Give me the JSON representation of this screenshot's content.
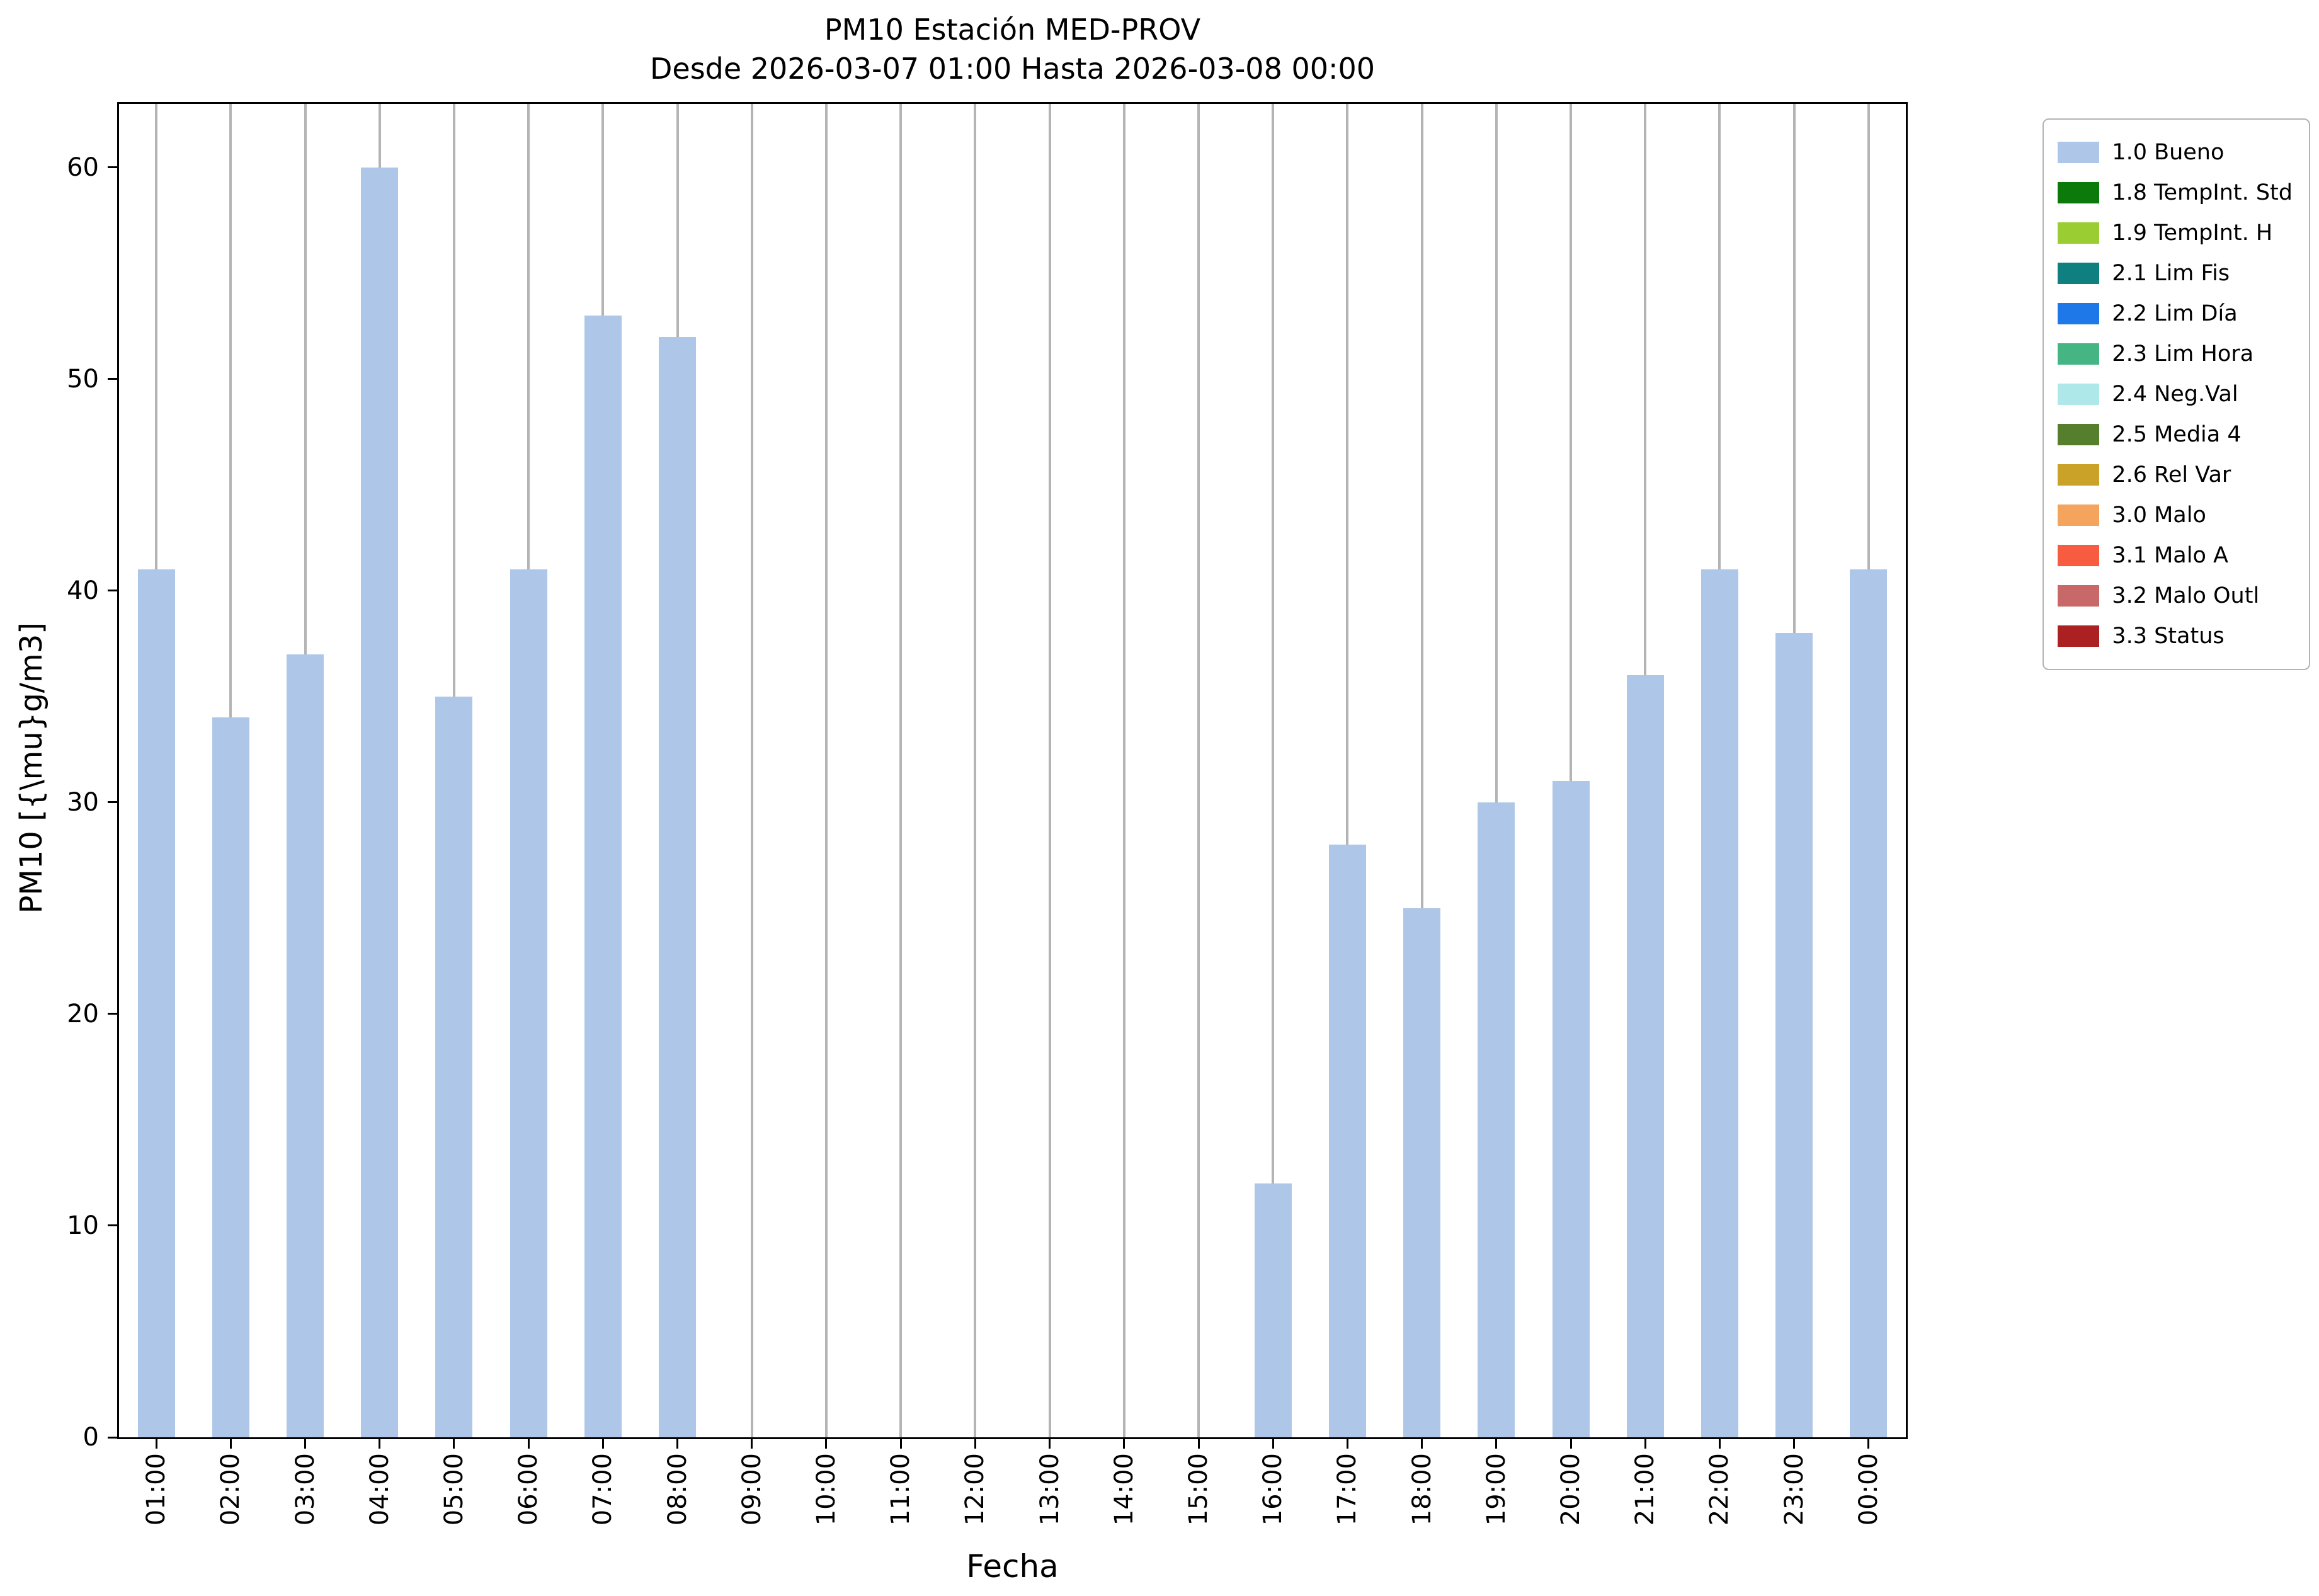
{
  "chart_data": {
    "type": "bar",
    "title": "PM10 Estación MED-PROV",
    "subtitle": "Desde 2026-03-07 01:00 Hasta 2026-03-08 00:00",
    "xlabel": "Fecha",
    "ylabel": "PM10 [{\\mu}g/m3]",
    "categories": [
      "01:00",
      "02:00",
      "03:00",
      "04:00",
      "05:00",
      "06:00",
      "07:00",
      "08:00",
      "09:00",
      "10:00",
      "11:00",
      "12:00",
      "13:00",
      "14:00",
      "15:00",
      "16:00",
      "17:00",
      "18:00",
      "19:00",
      "20:00",
      "21:00",
      "22:00",
      "23:00",
      "00:00"
    ],
    "values": [
      41,
      34,
      37,
      60,
      35,
      41,
      53,
      52,
      0,
      0,
      0,
      0,
      0,
      0,
      0,
      12,
      28,
      25,
      30,
      31,
      36,
      41,
      38,
      41
    ],
    "ylim": [
      0,
      63
    ],
    "yticks": [
      0,
      10,
      20,
      30,
      40,
      50,
      60
    ],
    "bar_color": "#aec7e8",
    "grid": "vertical",
    "grid_color": "#b4b4b4",
    "legend_position": "upper-right-outside",
    "legend": [
      {
        "label": "1.0 Bueno",
        "color": "#aec7e8"
      },
      {
        "label": "1.8 TempInt. Std",
        "color": "#0b7a0b"
      },
      {
        "label": "1.9 TempInt. H",
        "color": "#9acd32"
      },
      {
        "label": "2.1 Lim Fis",
        "color": "#0f7f7f"
      },
      {
        "label": "2.2 Lim Día",
        "color": "#1e78e7"
      },
      {
        "label": "2.3 Lim Hora",
        "color": "#45b583"
      },
      {
        "label": "2.4 Neg.Val",
        "color": "#aee8e8"
      },
      {
        "label": "2.5 Media 4",
        "color": "#557f2d"
      },
      {
        "label": "2.6 Rel Var",
        "color": "#c9a227"
      },
      {
        "label": "3.0 Malo",
        "color": "#f4a45c"
      },
      {
        "label": "3.1 Malo A",
        "color": "#f85c40"
      },
      {
        "label": "3.2 Malo Outl",
        "color": "#c96868"
      },
      {
        "label": "3.3 Status",
        "color": "#ab2020"
      }
    ]
  }
}
